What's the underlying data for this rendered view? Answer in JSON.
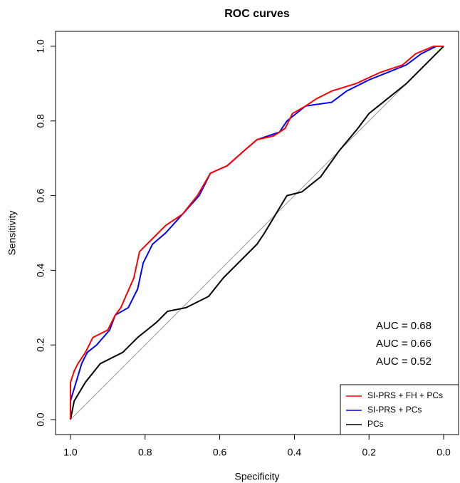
{
  "chart_data": {
    "type": "line",
    "title": "ROC curves",
    "x_label": "Specificity",
    "y_label": "Sensitivity",
    "xlim": [
      1.04,
      -0.04
    ],
    "ylim": [
      -0.04,
      1.04
    ],
    "xticks": [
      {
        "value": 1,
        "label": "1.0"
      },
      0.8,
      0.6,
      0.4,
      0.2,
      {
        "value": 0,
        "label": "0.0"
      }
    ],
    "yticks": [
      {
        "value": 0,
        "label": "0.0"
      },
      0.2,
      0.4,
      0.6,
      0.8,
      {
        "value": 1,
        "label": "1.0"
      }
    ],
    "legend": "bottom-right",
    "series": [
      {
        "name": "SI-PRS + FH + PCs",
        "color": "#ff0000",
        "x": [
          1,
          1,
          0.99,
          0.98,
          0.96,
          0.94,
          0.9,
          0.88,
          0.865,
          0.83,
          0.815,
          0.785,
          0.745,
          0.7,
          0.66,
          0.625,
          0.58,
          0.535,
          0.5,
          0.455,
          0.425,
          0.405,
          0.37,
          0.34,
          0.3,
          0.235,
          0.17,
          0.11,
          0.075,
          0.027,
          0
        ],
        "values": [
          0,
          0.1,
          0.13,
          0.15,
          0.18,
          0.22,
          0.24,
          0.28,
          0.3,
          0.38,
          0.45,
          0.48,
          0.52,
          0.55,
          0.6,
          0.66,
          0.68,
          0.72,
          0.75,
          0.76,
          0.78,
          0.82,
          0.84,
          0.86,
          0.88,
          0.9,
          0.93,
          0.95,
          0.98,
          1,
          1
        ]
      },
      {
        "name": "SI-PRS + PCs",
        "color": "#0000ff",
        "x": [
          1,
          1,
          0.985,
          0.97,
          0.955,
          0.93,
          0.895,
          0.88,
          0.845,
          0.82,
          0.805,
          0.78,
          0.745,
          0.7,
          0.655,
          0.625,
          0.58,
          0.535,
          0.5,
          0.44,
          0.42,
          0.37,
          0.3,
          0.26,
          0.2,
          0.15,
          0.1,
          0.06,
          0.02,
          0
        ],
        "values": [
          0,
          0.05,
          0.1,
          0.15,
          0.18,
          0.2,
          0.24,
          0.28,
          0.3,
          0.35,
          0.42,
          0.47,
          0.5,
          0.55,
          0.6,
          0.66,
          0.68,
          0.72,
          0.75,
          0.77,
          0.8,
          0.84,
          0.85,
          0.88,
          0.91,
          0.93,
          0.95,
          0.98,
          1,
          1
        ]
      },
      {
        "name": "PCs",
        "color": "#000000",
        "x": [
          1,
          0.99,
          0.96,
          0.92,
          0.86,
          0.82,
          0.77,
          0.74,
          0.69,
          0.63,
          0.59,
          0.55,
          0.5,
          0.48,
          0.45,
          0.42,
          0.38,
          0.33,
          0.28,
          0.23,
          0.2,
          0.15,
          0.1,
          0.05,
          0
        ],
        "values": [
          0,
          0.05,
          0.1,
          0.15,
          0.18,
          0.22,
          0.26,
          0.29,
          0.3,
          0.33,
          0.38,
          0.42,
          0.47,
          0.5,
          0.55,
          0.6,
          0.61,
          0.65,
          0.72,
          0.78,
          0.82,
          0.86,
          0.9,
          0.95,
          1
        ]
      }
    ],
    "annotations": [
      {
        "text": "AUC =  0.68",
        "color": "#ff0000"
      },
      {
        "text": "AUC =  0.66",
        "color": "#0000ff"
      },
      {
        "text": "AUC =  0.52",
        "color": "#000000"
      }
    ]
  }
}
